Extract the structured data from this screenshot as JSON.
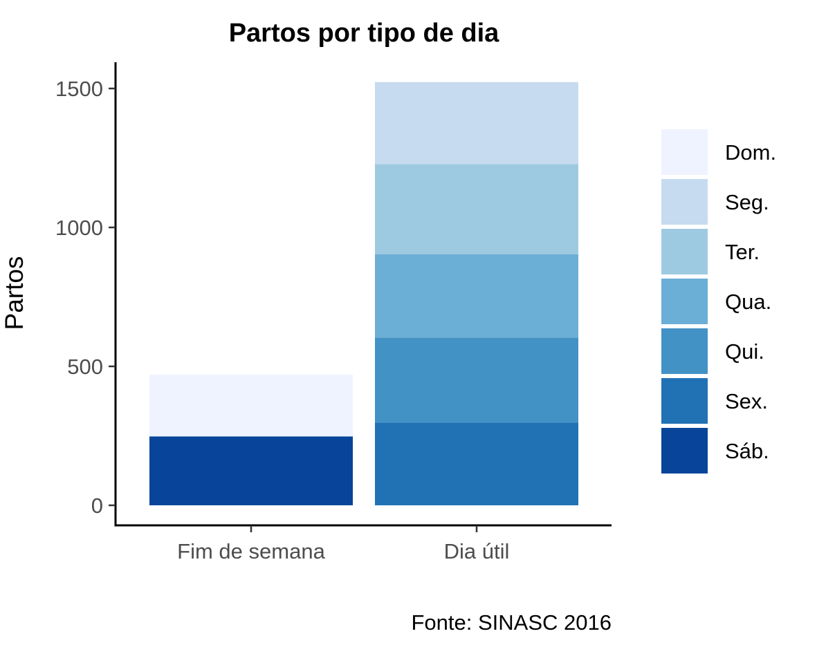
{
  "chart_data": {
    "type": "bar",
    "stacked": true,
    "title": "Partos por tipo de dia",
    "xlabel": "",
    "ylabel": "Partos",
    "caption": "Fonte: SINASC 2016",
    "categories": [
      "Fim de semana",
      "Dia útil"
    ],
    "ylim": [
      0,
      1550
    ],
    "yticks": [
      0,
      500,
      1000,
      1500
    ],
    "grid": false,
    "legend_position": "right",
    "series": [
      {
        "name": "Dom.",
        "color": "#eff3ff",
        "values": [
          222,
          0
        ]
      },
      {
        "name": "Seg.",
        "color": "#c6dbef",
        "values": [
          0,
          295
        ]
      },
      {
        "name": "Ter.",
        "color": "#9ecae1",
        "values": [
          0,
          325
        ]
      },
      {
        "name": "Qua.",
        "color": "#6baed6",
        "values": [
          0,
          300
        ]
      },
      {
        "name": "Qui.",
        "color": "#4292c6",
        "values": [
          0,
          305
        ]
      },
      {
        "name": "Sex.",
        "color": "#2171b5",
        "values": [
          0,
          298
        ]
      },
      {
        "name": "Sáb.",
        "color": "#08459a",
        "values": [
          248,
          0
        ]
      }
    ]
  }
}
